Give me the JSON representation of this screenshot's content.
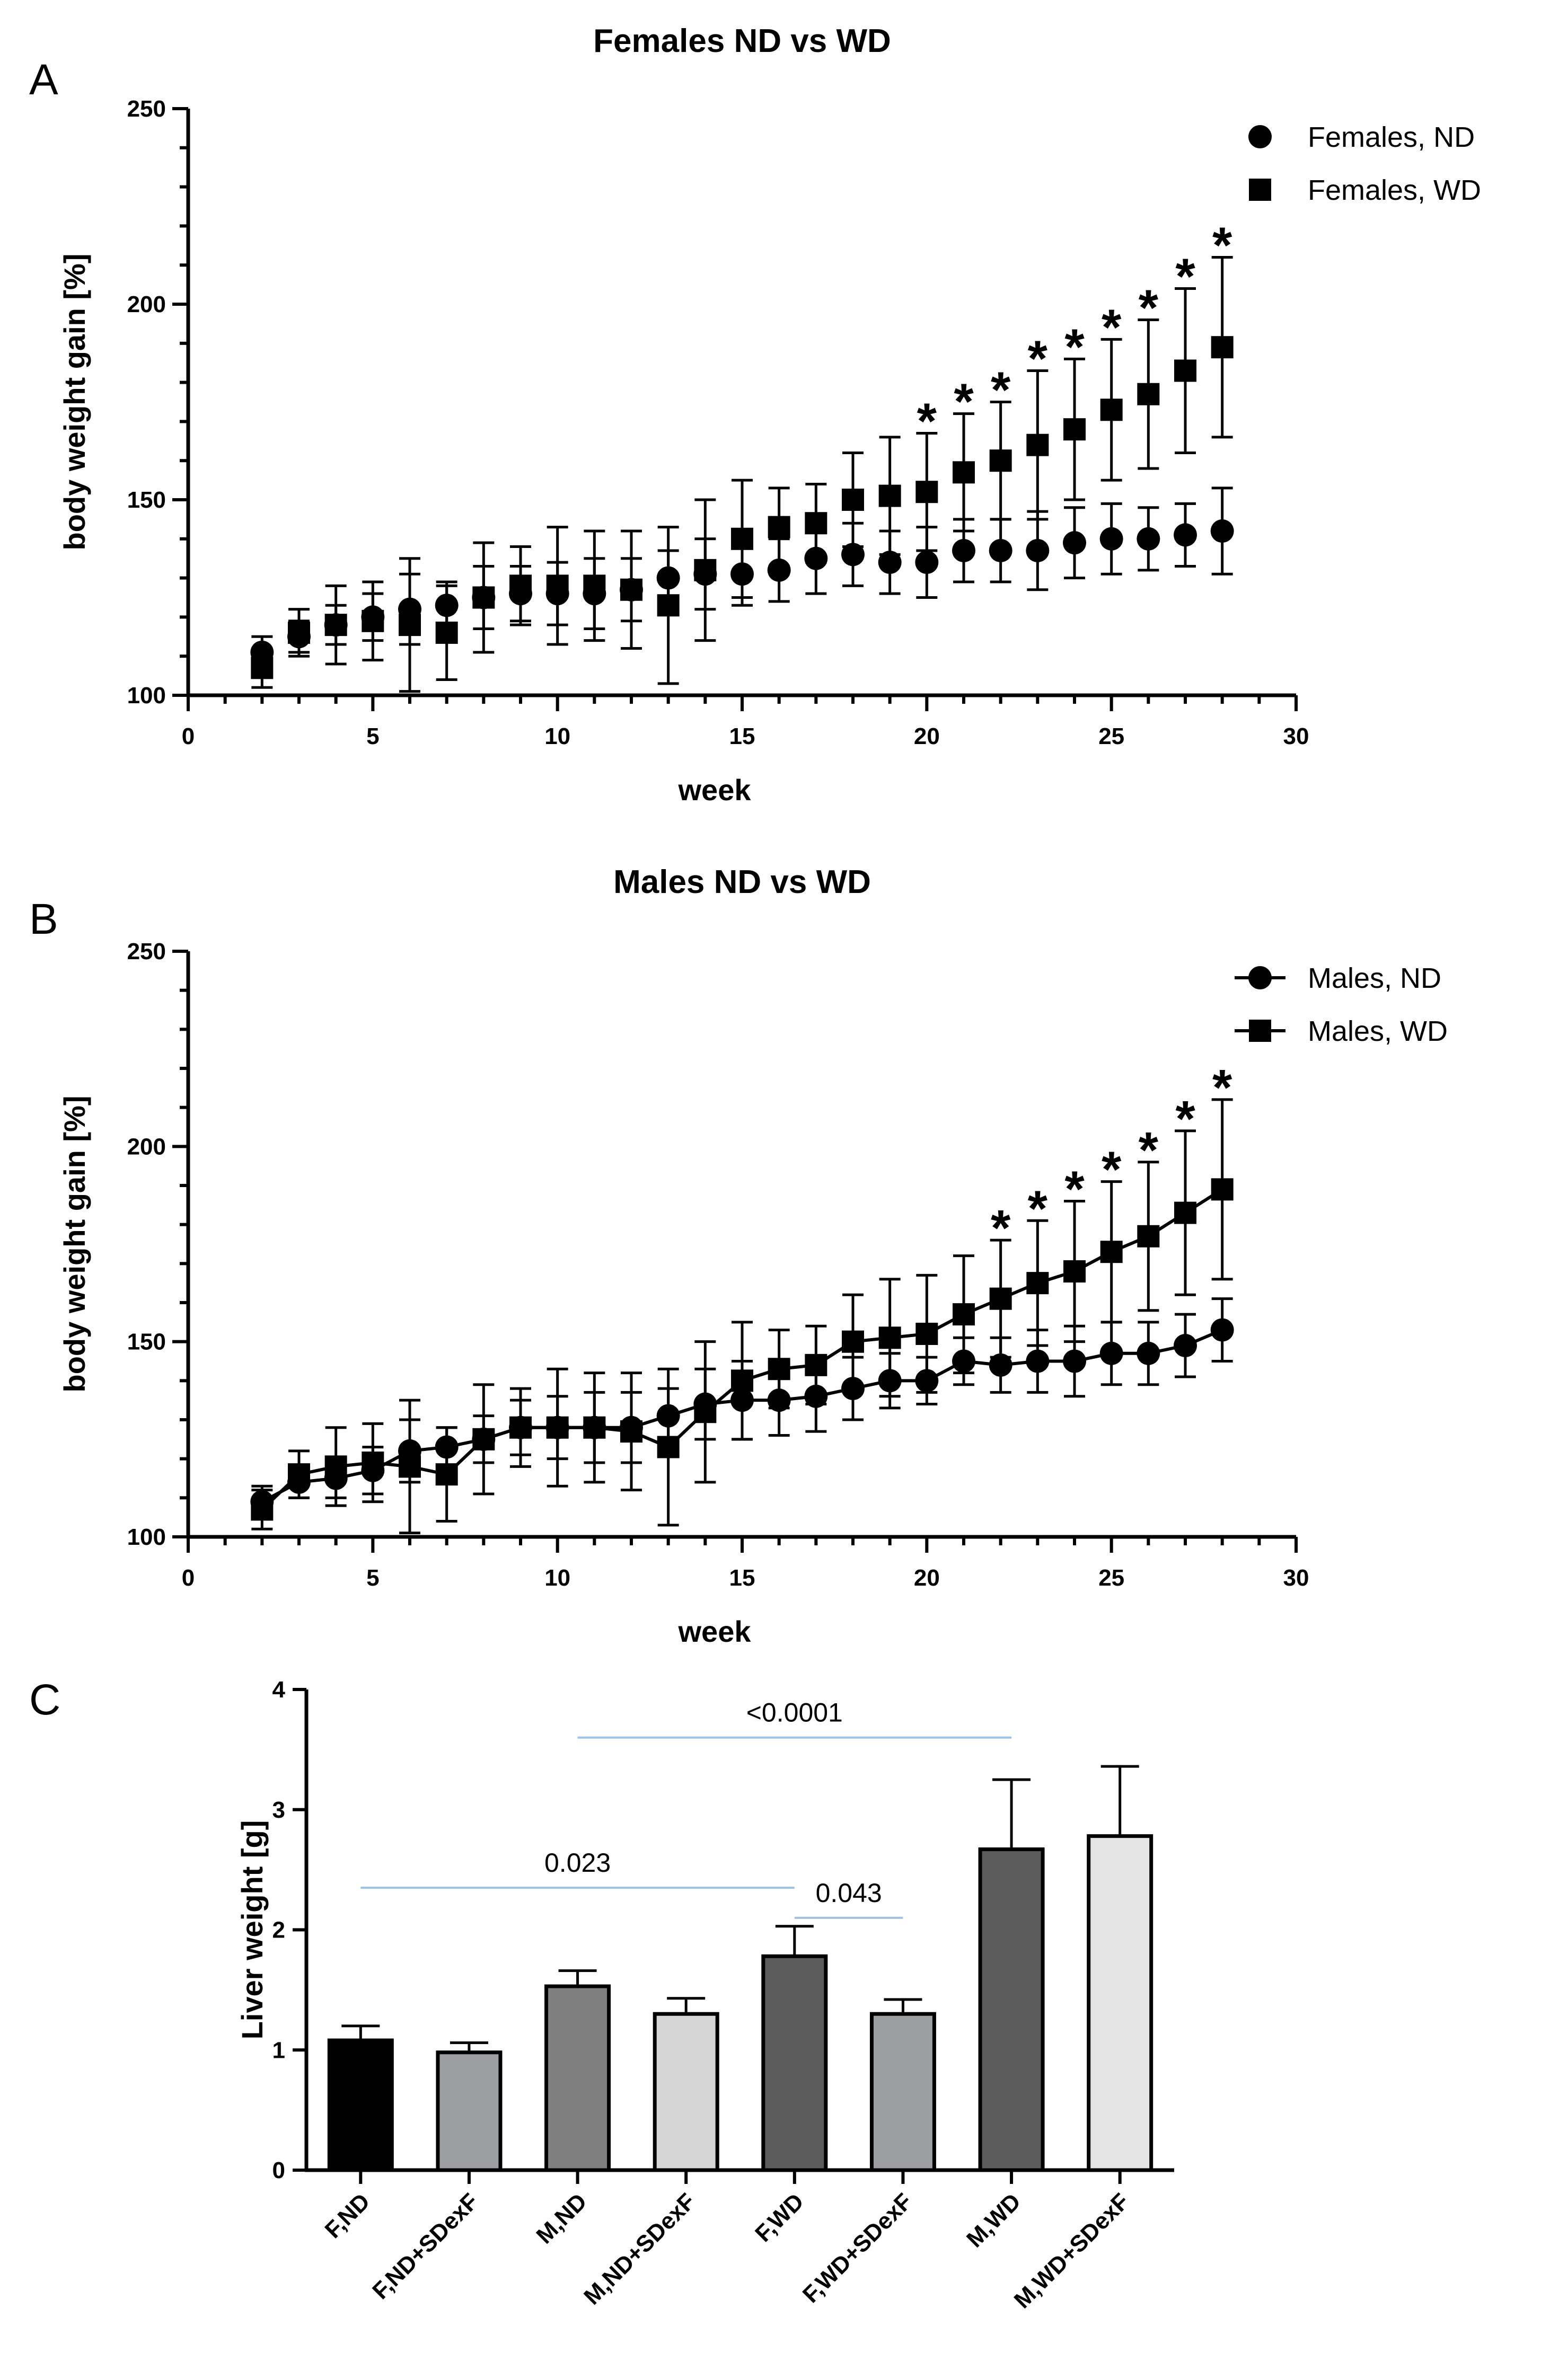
{
  "chart_data": [
    {
      "panel": "A",
      "type": "scatter",
      "title": "Females ND vs WD",
      "xlabel": "week",
      "ylabel": "body weight gain [%]",
      "xlim": [
        0,
        30
      ],
      "ylim": [
        100,
        250
      ],
      "xticks": [
        0,
        5,
        10,
        15,
        20,
        25,
        30
      ],
      "yticks": [
        100,
        150,
        200,
        250
      ],
      "connect_lines": false,
      "legend_position": "top-right",
      "series": [
        {
          "name": "Females, ND",
          "marker": "circle",
          "x": [
            2,
            3,
            4,
            5,
            6,
            7,
            8,
            9,
            10,
            11,
            12,
            13,
            14,
            15,
            16,
            17,
            18,
            19,
            20,
            21,
            22,
            23,
            24,
            25,
            26,
            27,
            28
          ],
          "y": [
            111,
            115,
            118,
            120,
            122,
            123,
            125,
            126,
            126,
            126,
            127,
            130,
            131,
            131,
            132,
            135,
            136,
            134,
            134,
            137,
            137,
            137,
            139,
            140,
            140,
            141,
            142
          ],
          "err": [
            4,
            4,
            5,
            6,
            9,
            6,
            8,
            7,
            8,
            9,
            8,
            7,
            9,
            8,
            8,
            9,
            8,
            8,
            9,
            8,
            8,
            10,
            9,
            9,
            8,
            8,
            11
          ]
        },
        {
          "name": "Females, WD",
          "marker": "square",
          "x": [
            2,
            3,
            4,
            5,
            6,
            7,
            8,
            9,
            10,
            11,
            12,
            13,
            14,
            15,
            16,
            17,
            18,
            19,
            20,
            21,
            22,
            23,
            24,
            25,
            26,
            27,
            28
          ],
          "y": [
            107,
            116,
            118,
            119,
            118,
            116,
            125,
            128,
            128,
            128,
            127,
            123,
            132,
            140,
            143,
            144,
            150,
            151,
            152,
            157,
            160,
            164,
            168,
            173,
            177,
            183,
            189
          ],
          "err": [
            5,
            6,
            10,
            10,
            17,
            12,
            14,
            10,
            15,
            14,
            15,
            20,
            18,
            15,
            10,
            10,
            12,
            15,
            15,
            15,
            15,
            19,
            18,
            18,
            19,
            21,
            23
          ]
        }
      ],
      "significance_markers": [
        {
          "x": 20,
          "label": "*"
        },
        {
          "x": 21,
          "label": "*"
        },
        {
          "x": 22,
          "label": "*"
        },
        {
          "x": 23,
          "label": "*"
        },
        {
          "x": 24,
          "label": "*"
        },
        {
          "x": 25,
          "label": "*"
        },
        {
          "x": 26,
          "label": "*"
        },
        {
          "x": 27,
          "label": "*"
        },
        {
          "x": 28,
          "label": "*"
        }
      ]
    },
    {
      "panel": "B",
      "type": "line",
      "title": "Males ND vs WD",
      "xlabel": "week",
      "ylabel": "body weight gain [%]",
      "xlim": [
        0,
        30
      ],
      "ylim": [
        100,
        250
      ],
      "xticks": [
        0,
        5,
        10,
        15,
        20,
        25,
        30
      ],
      "yticks": [
        100,
        150,
        200,
        250
      ],
      "connect_lines": true,
      "legend_position": "top-right",
      "series": [
        {
          "name": "Males, ND",
          "marker": "circle",
          "x": [
            2,
            3,
            4,
            5,
            6,
            7,
            8,
            9,
            10,
            11,
            12,
            13,
            14,
            15,
            16,
            17,
            18,
            19,
            20,
            21,
            22,
            23,
            24,
            25,
            26,
            27,
            28
          ],
          "y": [
            109,
            114,
            115,
            117,
            122,
            123,
            125,
            128,
            128,
            128,
            128,
            131,
            134,
            135,
            135,
            136,
            138,
            140,
            140,
            145,
            144,
            145,
            145,
            147,
            147,
            149,
            153
          ],
          "err": [
            4,
            4,
            5,
            6,
            8,
            5,
            6,
            7,
            8,
            9,
            9,
            7,
            9,
            10,
            9,
            9,
            8,
            7,
            6,
            6,
            7,
            8,
            9,
            8,
            8,
            8,
            8
          ]
        },
        {
          "name": "Males, WD",
          "marker": "square",
          "x": [
            2,
            3,
            4,
            5,
            6,
            7,
            8,
            9,
            10,
            11,
            12,
            13,
            14,
            15,
            16,
            17,
            18,
            19,
            20,
            21,
            22,
            23,
            24,
            25,
            26,
            27,
            28
          ],
          "y": [
            107,
            116,
            118,
            119,
            118,
            116,
            125,
            128,
            128,
            128,
            127,
            123,
            132,
            140,
            143,
            144,
            150,
            151,
            152,
            157,
            161,
            165,
            168,
            173,
            177,
            183,
            189
          ],
          "err": [
            5,
            6,
            10,
            10,
            17,
            12,
            14,
            10,
            15,
            14,
            15,
            20,
            18,
            15,
            10,
            10,
            12,
            15,
            15,
            15,
            15,
            16,
            18,
            18,
            19,
            21,
            23
          ]
        }
      ],
      "significance_markers": [
        {
          "x": 22,
          "label": "*"
        },
        {
          "x": 23,
          "label": "*"
        },
        {
          "x": 24,
          "label": "*"
        },
        {
          "x": 25,
          "label": "*"
        },
        {
          "x": 26,
          "label": "*"
        },
        {
          "x": 27,
          "label": "*"
        },
        {
          "x": 28,
          "label": "*"
        }
      ]
    },
    {
      "panel": "C",
      "type": "bar",
      "title": "",
      "xlabel": "",
      "ylabel": "Liver weight [g]",
      "ylim": [
        0,
        4
      ],
      "yticks": [
        0,
        1,
        2,
        3,
        4
      ],
      "categories": [
        "F,ND",
        "F,ND+SDexF",
        "M,ND",
        "M,ND+SDexF",
        "F,WD",
        "F,WD+SDexF",
        "M,WD",
        "M,WD+SDexF"
      ],
      "values": [
        1.08,
        0.98,
        1.53,
        1.3,
        1.78,
        1.3,
        2.67,
        2.78
      ],
      "err": [
        0.12,
        0.08,
        0.13,
        0.13,
        0.25,
        0.12,
        0.58,
        0.58
      ],
      "colors": [
        "#000000",
        "#9d9ea2",
        "#7f7f7f",
        "#d6d6d6",
        "#5c5c5c",
        "#9d9ea2",
        "#5c5c5c",
        "#e4e4e4"
      ],
      "comparisons": [
        {
          "from": 2,
          "to": 6,
          "level": 3.6,
          "label": "<0.0001"
        },
        {
          "from": 0,
          "to": 4,
          "level": 2.35,
          "label": "0.023"
        },
        {
          "from": 4,
          "to": 5,
          "level": 2.1,
          "label": "0.043"
        }
      ]
    }
  ]
}
